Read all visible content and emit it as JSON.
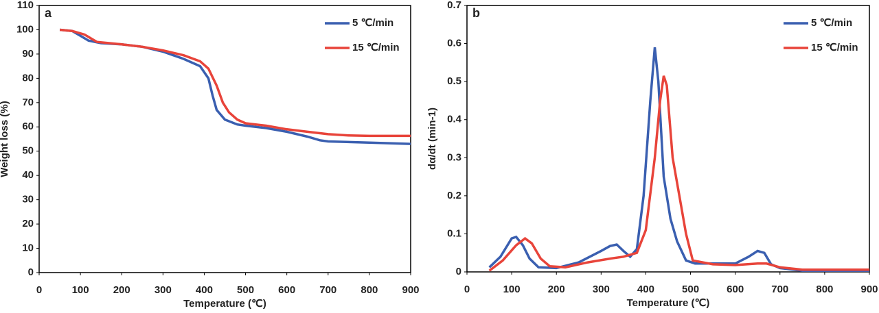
{
  "chart_data": [
    {
      "type": "line",
      "panel": "a",
      "xlabel": "Temperature (℃)",
      "ylabel": "Weight loss (%)",
      "xlim": [
        0,
        900
      ],
      "xticks": [
        0,
        100,
        200,
        300,
        400,
        500,
        600,
        700,
        800,
        900
      ],
      "ylim": [
        0,
        110
      ],
      "yticks": [
        0,
        10,
        20,
        30,
        40,
        50,
        60,
        70,
        80,
        90,
        100,
        110
      ],
      "legend": "upper right",
      "series": [
        {
          "name": "5 ℃/min",
          "color": "#3a5fb0",
          "x": [
            50,
            80,
            100,
            120,
            150,
            200,
            250,
            300,
            350,
            390,
            410,
            420,
            430,
            450,
            480,
            500,
            550,
            600,
            650,
            680,
            700,
            800,
            900
          ],
          "values": [
            100,
            99.5,
            97.5,
            95.5,
            94.5,
            94,
            93,
            91,
            88,
            85,
            80,
            73,
            67,
            63,
            61,
            60.5,
            59.5,
            58,
            56,
            54.5,
            54,
            53.5,
            53
          ]
        },
        {
          "name": "15 ℃/min",
          "color": "#e8443a",
          "x": [
            50,
            80,
            110,
            140,
            200,
            250,
            300,
            350,
            390,
            410,
            430,
            445,
            460,
            480,
            500,
            550,
            600,
            650,
            700,
            750,
            800,
            900
          ],
          "values": [
            100,
            99.5,
            98,
            95,
            94,
            93,
            91.5,
            89.5,
            87,
            84,
            77,
            70,
            66,
            63,
            61.5,
            60.5,
            59,
            58,
            57,
            56.5,
            56.3,
            56.3
          ]
        }
      ]
    },
    {
      "type": "line",
      "panel": "b",
      "xlabel": "Temperature (℃)",
      "ylabel": "dα/dt (min-1)",
      "xlim": [
        0,
        900
      ],
      "xticks": [
        0,
        100,
        200,
        300,
        400,
        500,
        600,
        700,
        800,
        900
      ],
      "ylim": [
        0,
        0.7
      ],
      "yticks": [
        0,
        0.1,
        0.2,
        0.3,
        0.4,
        0.5,
        0.6,
        0.7
      ],
      "legend": "upper right",
      "series": [
        {
          "name": "5 ℃/min",
          "color": "#3a5fb0",
          "x": [
            50,
            75,
            100,
            110,
            125,
            140,
            160,
            200,
            250,
            300,
            320,
            335,
            350,
            365,
            380,
            395,
            410,
            420,
            428,
            440,
            455,
            470,
            490,
            510,
            600,
            630,
            650,
            665,
            680,
            700,
            750,
            900
          ],
          "values": [
            0.012,
            0.04,
            0.088,
            0.092,
            0.07,
            0.035,
            0.012,
            0.01,
            0.025,
            0.055,
            0.068,
            0.072,
            0.055,
            0.04,
            0.06,
            0.2,
            0.45,
            0.59,
            0.5,
            0.25,
            0.14,
            0.08,
            0.03,
            0.022,
            0.022,
            0.04,
            0.055,
            0.05,
            0.02,
            0.01,
            0.003,
            0.003
          ]
        },
        {
          "name": "15 ℃/min",
          "color": "#e8443a",
          "x": [
            50,
            80,
            110,
            130,
            145,
            165,
            185,
            220,
            270,
            320,
            350,
            380,
            400,
            420,
            432,
            440,
            447,
            460,
            475,
            490,
            505,
            550,
            600,
            650,
            670,
            700,
            750,
            900
          ],
          "values": [
            0.003,
            0.03,
            0.07,
            0.088,
            0.075,
            0.035,
            0.015,
            0.012,
            0.025,
            0.035,
            0.04,
            0.05,
            0.11,
            0.3,
            0.45,
            0.515,
            0.49,
            0.3,
            0.2,
            0.1,
            0.03,
            0.02,
            0.018,
            0.022,
            0.022,
            0.012,
            0.006,
            0.006
          ]
        }
      ]
    }
  ]
}
